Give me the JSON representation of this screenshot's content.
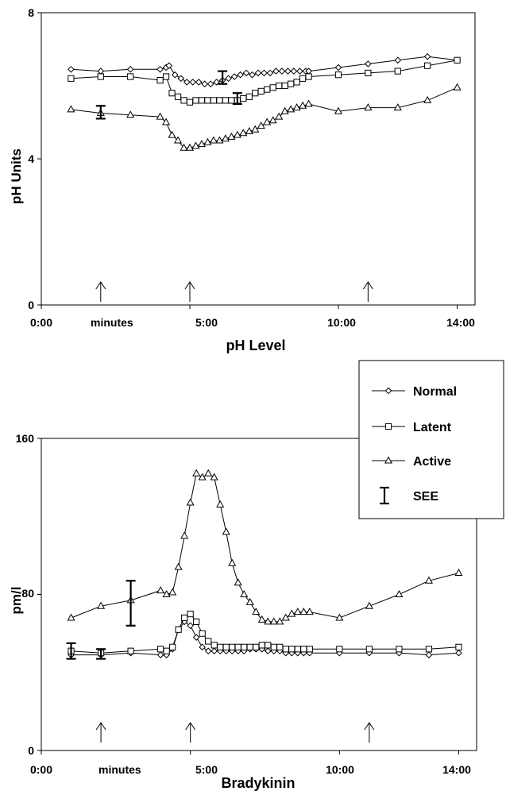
{
  "chart_data": [
    {
      "type": "line",
      "ylabel": "pH Units",
      "xlabel": "pH Level",
      "x_minutes_label": "minutes",
      "xlim": [
        0,
        14.6
      ],
      "ylim": [
        0,
        8
      ],
      "xticks": [
        0,
        5,
        10,
        14
      ],
      "xtick_labels": [
        "0:00",
        "5:00",
        "10:00",
        "14:00"
      ],
      "yticks": [
        0,
        4,
        8
      ],
      "ytick_labels": [
        "0",
        "4",
        "8"
      ],
      "arrows_x": [
        2,
        5,
        11
      ],
      "series": [
        {
          "name": "Normal",
          "marker": "diamond",
          "x": [
            1,
            2,
            3,
            4,
            4.2,
            4.3,
            4.5,
            4.7,
            4.9,
            5.1,
            5.3,
            5.5,
            5.7,
            5.9,
            6.1,
            6.3,
            6.5,
            6.7,
            6.9,
            7.1,
            7.3,
            7.5,
            7.7,
            7.9,
            8.1,
            8.3,
            8.5,
            8.7,
            8.9,
            9,
            10,
            11,
            12,
            13,
            14
          ],
          "y": [
            6.45,
            6.4,
            6.45,
            6.45,
            6.5,
            6.55,
            6.3,
            6.2,
            6.1,
            6.1,
            6.1,
            6.05,
            6.05,
            6.1,
            6.15,
            6.2,
            6.25,
            6.3,
            6.35,
            6.3,
            6.35,
            6.35,
            6.35,
            6.4,
            6.4,
            6.4,
            6.4,
            6.4,
            6.4,
            6.4,
            6.5,
            6.6,
            6.7,
            6.8,
            6.7
          ]
        },
        {
          "name": "Latent",
          "marker": "square",
          "x": [
            1,
            2,
            3,
            4,
            4.2,
            4.4,
            4.6,
            4.8,
            5,
            5.2,
            5.4,
            5.6,
            5.8,
            6,
            6.2,
            6.4,
            6.6,
            6.8,
            7,
            7.2,
            7.4,
            7.6,
            7.8,
            8,
            8.2,
            8.4,
            8.6,
            8.8,
            9,
            10,
            11,
            12,
            13,
            14
          ],
          "y": [
            6.2,
            6.25,
            6.25,
            6.15,
            6.25,
            5.8,
            5.7,
            5.6,
            5.55,
            5.6,
            5.6,
            5.6,
            5.6,
            5.6,
            5.6,
            5.6,
            5.6,
            5.65,
            5.7,
            5.8,
            5.85,
            5.9,
            5.95,
            6,
            6,
            6.05,
            6.1,
            6.2,
            6.25,
            6.3,
            6.35,
            6.4,
            6.55,
            6.7
          ]
        },
        {
          "name": "Active",
          "marker": "triangle",
          "x": [
            1,
            2,
            3,
            4,
            4.2,
            4.4,
            4.6,
            4.8,
            5,
            5.2,
            5.4,
            5.6,
            5.8,
            6,
            6.2,
            6.4,
            6.6,
            6.8,
            7,
            7.2,
            7.4,
            7.6,
            7.8,
            8,
            8.2,
            8.4,
            8.6,
            8.8,
            9,
            10,
            11,
            12,
            13,
            14
          ],
          "y": [
            5.35,
            5.25,
            5.2,
            5.15,
            5,
            4.65,
            4.5,
            4.3,
            4.3,
            4.35,
            4.4,
            4.45,
            4.5,
            4.5,
            4.55,
            4.6,
            4.65,
            4.7,
            4.75,
            4.8,
            4.9,
            5,
            5.05,
            5.15,
            5.3,
            5.35,
            5.4,
            5.45,
            5.5,
            5.3,
            5.4,
            5.4,
            5.6,
            5.95
          ]
        }
      ],
      "error_bars": [
        {
          "x": 2,
          "y": 5.3,
          "low": 5.1,
          "high": 5.45
        },
        {
          "x": 6.1,
          "y": 6.2,
          "low": 6.05,
          "high": 6.4
        },
        {
          "x": 6.6,
          "y": 5.65,
          "low": 5.5,
          "high": 5.8
        }
      ]
    },
    {
      "type": "line",
      "ylabel": "pm/l",
      "xlabel": "Bradykinin",
      "x_minutes_label": "minutes",
      "xlim": [
        0,
        14.6
      ],
      "ylim": [
        0,
        160
      ],
      "xticks": [
        0,
        5,
        10,
        14
      ],
      "xtick_labels": [
        "0:00",
        "5:00",
        "10:00",
        "14:00"
      ],
      "yticks": [
        0,
        80,
        160
      ],
      "ytick_labels": [
        "0",
        "80",
        "160"
      ],
      "arrows_x": [
        2,
        5,
        11
      ],
      "legend": {
        "placement": "top-right",
        "entries": [
          {
            "label": "Normal",
            "marker": "diamond"
          },
          {
            "label": "Latent",
            "marker": "square"
          },
          {
            "label": "Active",
            "marker": "triangle"
          },
          {
            "label": "SEE",
            "marker": "errorbar"
          }
        ]
      },
      "series": [
        {
          "name": "Normal",
          "marker": "diamond",
          "x": [
            1,
            2,
            3,
            4,
            4.2,
            4.4,
            4.6,
            4.8,
            5,
            5.2,
            5.4,
            5.6,
            5.8,
            6,
            6.2,
            6.4,
            6.6,
            6.8,
            7,
            7.2,
            7.4,
            7.6,
            7.8,
            8,
            8.2,
            8.4,
            8.6,
            8.8,
            9,
            10,
            11,
            12,
            13,
            14
          ],
          "y": [
            49,
            49,
            50,
            49,
            49,
            52,
            62,
            66,
            64,
            58,
            53,
            51,
            51,
            51,
            51,
            51,
            51,
            51,
            52,
            52,
            52,
            51,
            51,
            51,
            50,
            50,
            50,
            50,
            50,
            50,
            50,
            50,
            49,
            50
          ]
        },
        {
          "name": "Latent",
          "marker": "square",
          "x": [
            1,
            2,
            3,
            4,
            4.2,
            4.4,
            4.6,
            4.8,
            5,
            5.2,
            5.4,
            5.6,
            5.8,
            6,
            6.2,
            6.4,
            6.6,
            6.8,
            7,
            7.2,
            7.4,
            7.6,
            7.8,
            8,
            8.2,
            8.4,
            8.6,
            8.8,
            9,
            10,
            11,
            12,
            13,
            14
          ],
          "y": [
            51,
            50,
            51,
            52,
            51,
            53,
            62,
            68,
            70,
            66,
            60,
            56,
            54,
            53,
            53,
            53,
            53,
            53,
            53,
            53,
            54,
            54,
            53,
            53,
            52,
            52,
            52,
            52,
            52,
            52,
            52,
            52,
            52,
            53
          ]
        },
        {
          "name": "Active",
          "marker": "triangle",
          "x": [
            1,
            2,
            3,
            4,
            4.2,
            4.4,
            4.6,
            4.8,
            5,
            5.2,
            5.4,
            5.6,
            5.8,
            6,
            6.2,
            6.4,
            6.6,
            6.8,
            7,
            7.2,
            7.4,
            7.6,
            7.8,
            8,
            8.2,
            8.4,
            8.6,
            8.8,
            9,
            10,
            11,
            12,
            13,
            14
          ],
          "y": [
            68,
            74,
            77,
            82,
            80,
            81,
            94,
            110,
            127,
            142,
            140,
            142,
            140,
            126,
            112,
            96,
            86,
            80,
            76,
            71,
            67,
            66,
            66,
            66,
            68,
            70,
            71,
            71,
            71,
            68,
            74,
            80,
            87,
            91
          ]
        }
      ],
      "error_bars": [
        {
          "x": 1,
          "y": 50,
          "low": 47,
          "high": 55
        },
        {
          "x": 2,
          "y": 49,
          "low": 47,
          "high": 52
        },
        {
          "x": 3,
          "y": 77,
          "low": 64,
          "high": 87
        }
      ]
    }
  ]
}
